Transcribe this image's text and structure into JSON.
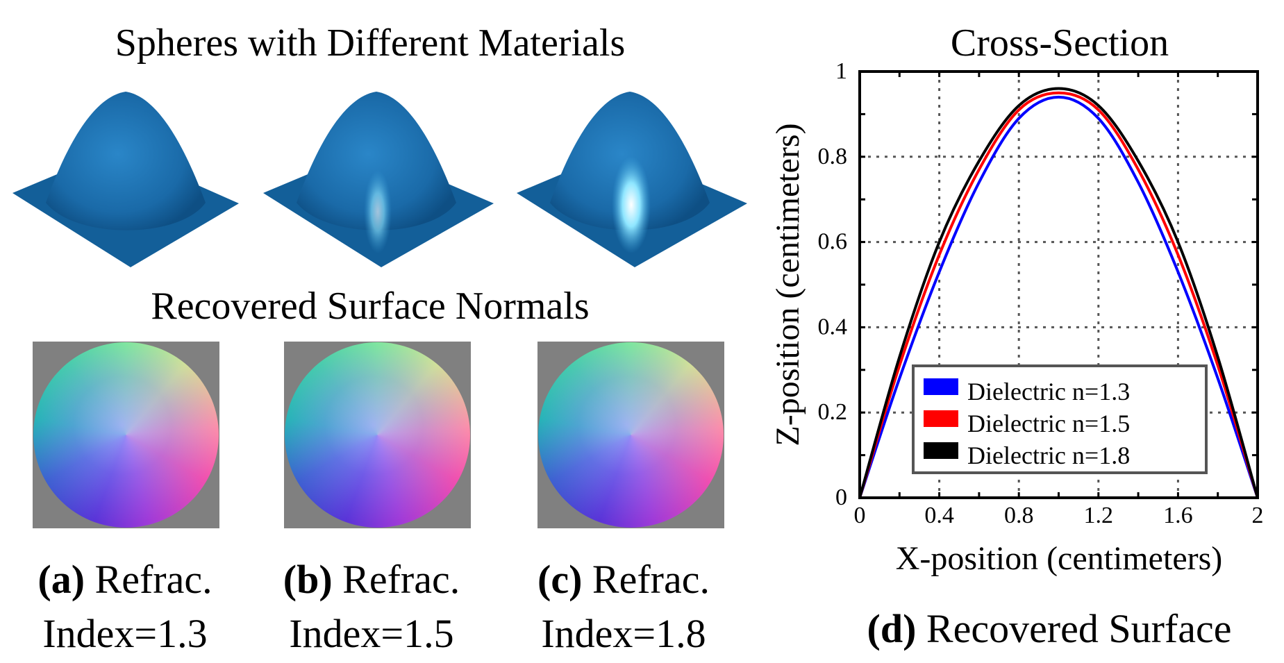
{
  "left": {
    "spheres_title": "Spheres with Different Materials",
    "normals_title": "Recovered Surface Normals",
    "panels": [
      {
        "letter": "(a)",
        "line1": "Refrac.",
        "line2": "Index=1.3",
        "highlight": 0
      },
      {
        "letter": "(b)",
        "line1": "Refrac.",
        "line2": "Index=1.5",
        "highlight": 0.6
      },
      {
        "letter": "(c)",
        "line1": "Refrac.",
        "line2": "Index=1.8",
        "highlight": 1
      }
    ],
    "surface_color": "#1a6aa8"
  },
  "right": {
    "caption_letter": "(d)",
    "caption_text": "Recovered Surface"
  },
  "chart_data": {
    "type": "line",
    "title": "Cross-Section",
    "xlabel": "X-position (centimeters)",
    "ylabel": "Z-position (centimeters)",
    "xlim": [
      0,
      2
    ],
    "ylim": [
      0,
      1
    ],
    "xticks": [
      "0",
      "0.4",
      "0.8",
      "1.2",
      "1.6",
      "2"
    ],
    "yticks": [
      "0",
      "0.2",
      "0.4",
      "0.6",
      "0.8",
      "1"
    ],
    "grid": true,
    "legend_position": "bottom-center",
    "x": [
      0,
      0.2,
      0.4,
      0.6,
      0.8,
      1.0,
      1.2,
      1.4,
      1.6,
      1.8,
      2.0
    ],
    "series": [
      {
        "name": "Dielectric n=1.3",
        "color": "#0000ff",
        "values": [
          0,
          0.28,
          0.53,
          0.74,
          0.89,
          0.94,
          0.89,
          0.74,
          0.53,
          0.28,
          0
        ]
      },
      {
        "name": "Dielectric n=1.5",
        "color": "#ff0000",
        "values": [
          0,
          0.31,
          0.57,
          0.77,
          0.91,
          0.95,
          0.91,
          0.77,
          0.57,
          0.31,
          0
        ]
      },
      {
        "name": "Dielectric n=1.8",
        "color": "#000000",
        "values": [
          0,
          0.33,
          0.6,
          0.79,
          0.92,
          0.96,
          0.92,
          0.79,
          0.6,
          0.33,
          0
        ]
      }
    ]
  }
}
